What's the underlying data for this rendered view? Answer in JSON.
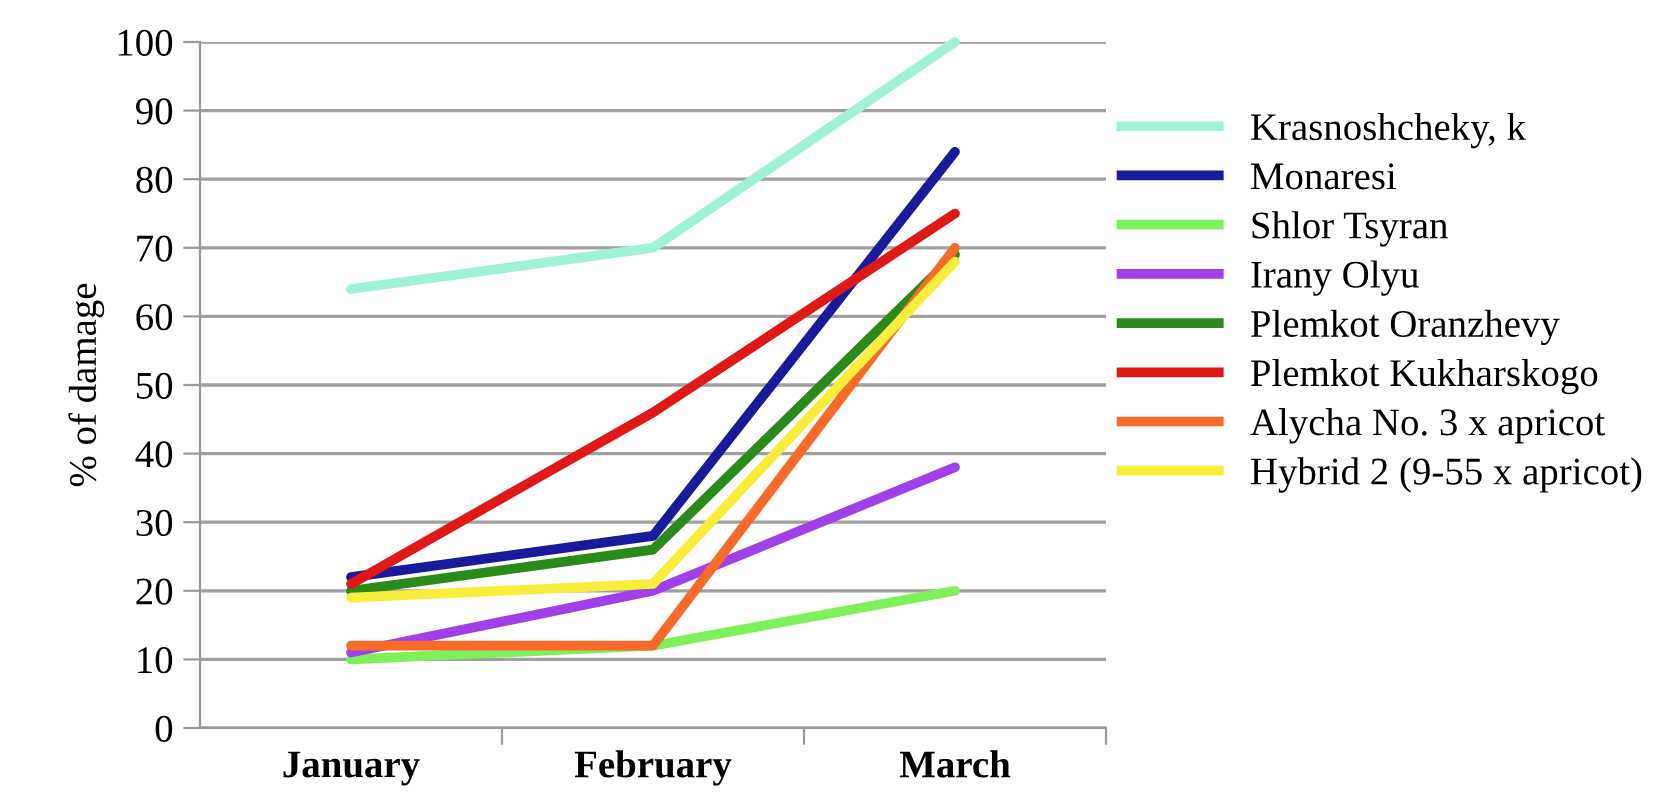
{
  "chart_data": {
    "type": "line",
    "ylabel": "% of damage",
    "categories": [
      "January",
      "February",
      "March"
    ],
    "series": [
      {
        "name": "Krasnoshcheky, k",
        "color": "#9ff2d4",
        "values": [
          64,
          70,
          100
        ]
      },
      {
        "name": "Monaresi",
        "color": "#1a1a9c",
        "values": [
          22,
          28,
          84
        ]
      },
      {
        "name": "Shlor Tsyran",
        "color": "#7ef05a",
        "values": [
          10,
          12,
          20
        ]
      },
      {
        "name": "Irany Olyu",
        "color": "#a040e8",
        "values": [
          11,
          20,
          38
        ]
      },
      {
        "name": "Plemkot Oranzhevy",
        "color": "#2a8a1a",
        "values": [
          20,
          26,
          69
        ]
      },
      {
        "name": "Plemkot Kukharskogo",
        "color": "#e01818",
        "values": [
          21,
          46,
          75
        ]
      },
      {
        "name": "Alycha No. 3 x apricot",
        "color": "#f86a28",
        "values": [
          12,
          12,
          70
        ]
      },
      {
        "name": "Hybrid 2 (9-55 x apricot)",
        "color": "#f8ee3a",
        "values": [
          19,
          21,
          68
        ]
      }
    ],
    "ylim": [
      0,
      100
    ],
    "yticks": [
      0,
      10,
      20,
      30,
      40,
      50,
      60,
      70,
      80,
      90,
      100
    ],
    "grid": "y",
    "legend": "right",
    "marker": "none",
    "line_style": "solid"
  }
}
